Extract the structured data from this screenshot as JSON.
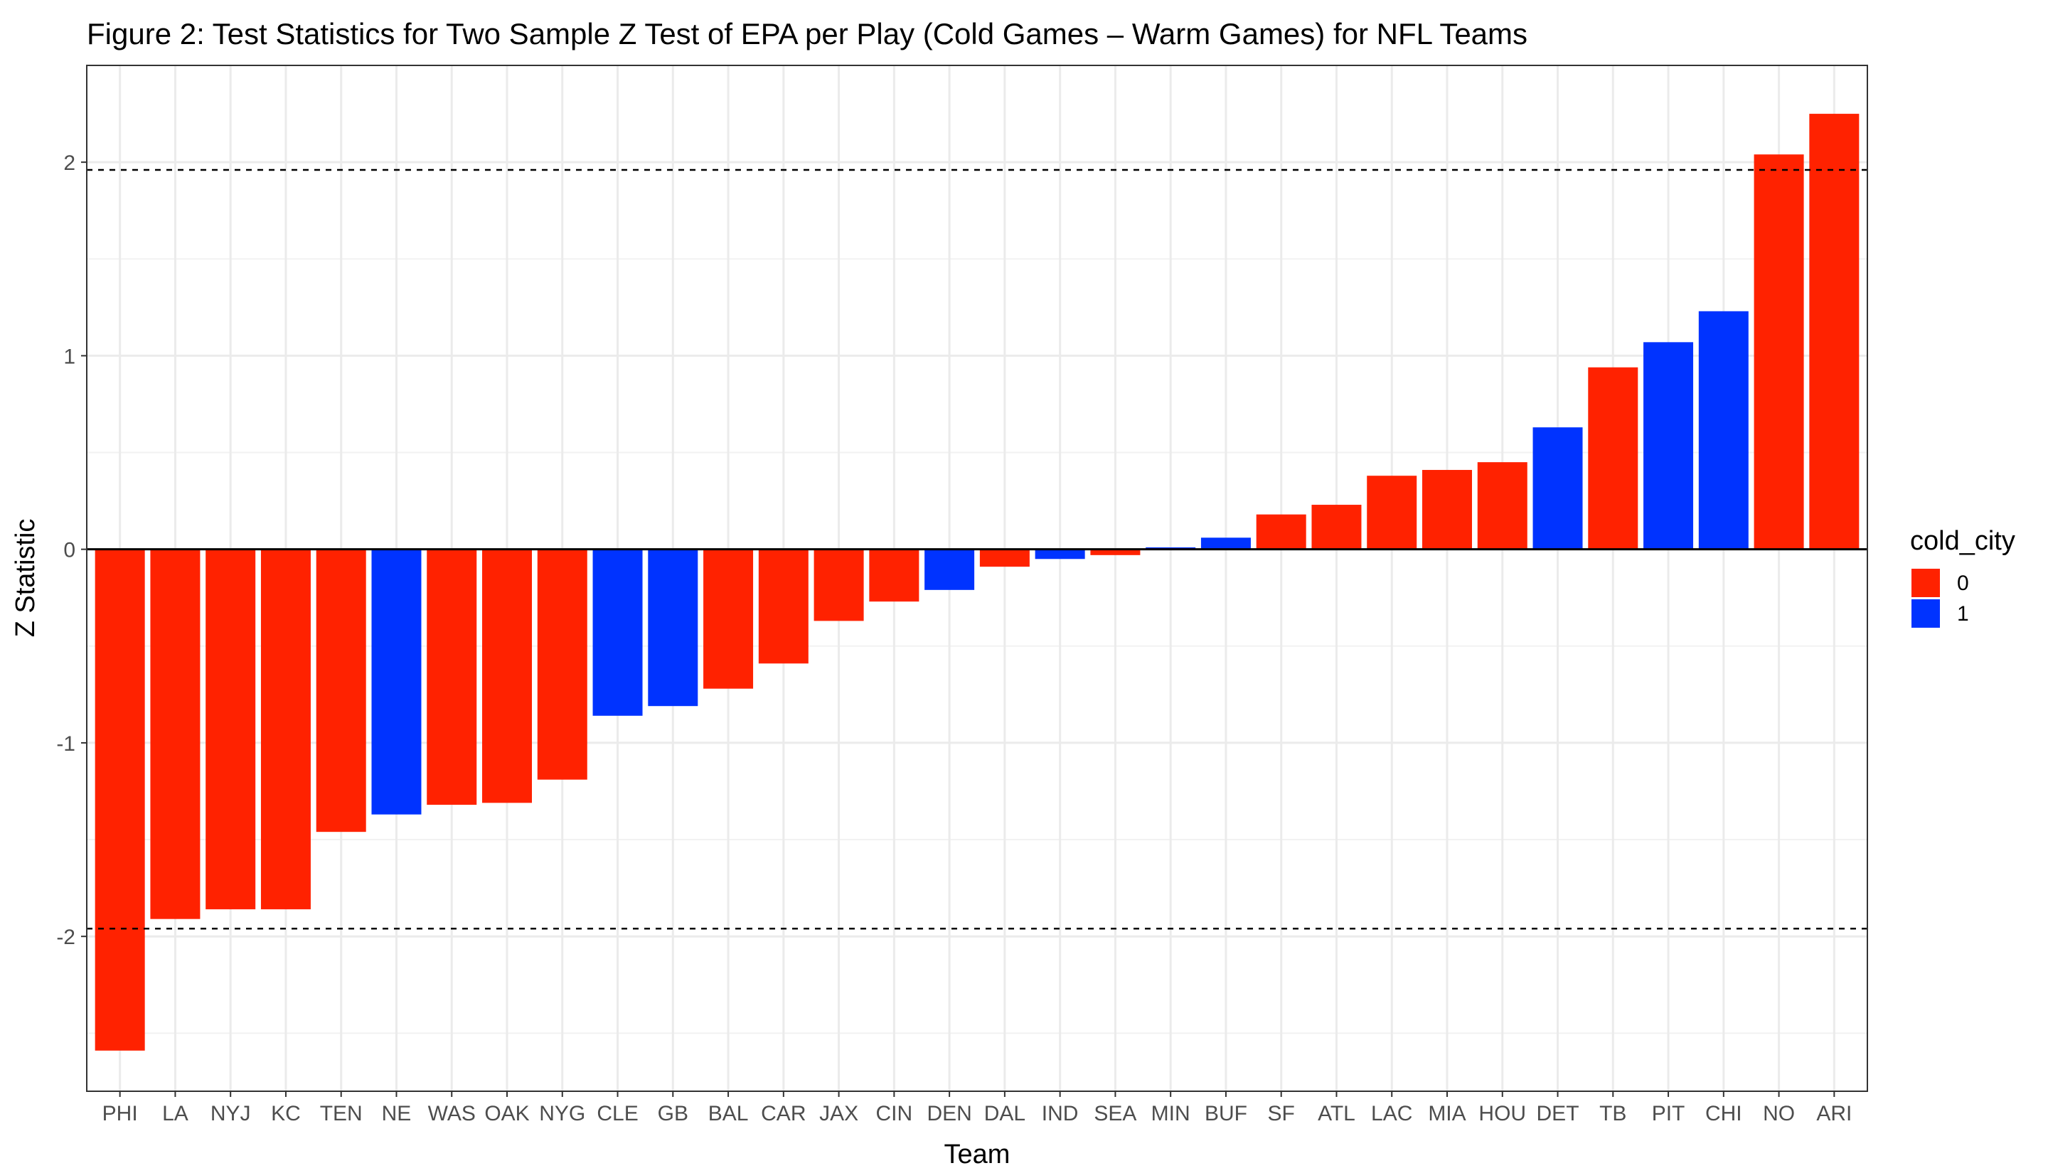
{
  "chart_data": {
    "type": "bar",
    "title": "Figure 2: Test Statistics for Two Sample Z Test of EPA per Play (Cold Games – Warm Games) for NFL Teams",
    "xlabel": "Team",
    "ylabel": "Z Statistic",
    "categories": [
      "PHI",
      "LA",
      "NYJ",
      "KC",
      "TEN",
      "NE",
      "WAS",
      "OAK",
      "NYG",
      "CLE",
      "GB",
      "BAL",
      "CAR",
      "JAX",
      "CIN",
      "DEN",
      "DAL",
      "IND",
      "SEA",
      "MIN",
      "BUF",
      "SF",
      "ATL",
      "LAC",
      "MIA",
      "HOU",
      "DET",
      "TB",
      "PIT",
      "CHI",
      "NO",
      "ARI"
    ],
    "values": [
      -2.59,
      -1.91,
      -1.86,
      -1.86,
      -1.46,
      -1.37,
      -1.32,
      -1.31,
      -1.19,
      -0.86,
      -0.81,
      -0.72,
      -0.59,
      -0.37,
      -0.27,
      -0.21,
      -0.09,
      -0.05,
      -0.03,
      0.01,
      0.06,
      0.18,
      0.23,
      0.38,
      0.41,
      0.45,
      0.63,
      0.94,
      1.07,
      1.23,
      2.04,
      2.25
    ],
    "cold_city": [
      "0",
      "0",
      "0",
      "0",
      "0",
      "1",
      "0",
      "0",
      "0",
      "1",
      "1",
      "0",
      "0",
      "0",
      "0",
      "1",
      "0",
      "1",
      "0",
      "1",
      "1",
      "0",
      "0",
      "0",
      "0",
      "0",
      "1",
      "0",
      "1",
      "1",
      "0",
      "0"
    ],
    "ylim": [
      -2.8,
      2.5
    ],
    "yticks": [
      -2,
      -1,
      0,
      1,
      2
    ],
    "yticklabels": [
      "-2",
      "-1",
      "0",
      "1",
      "2"
    ],
    "reference_lines": [
      -1.96,
      1.96
    ],
    "grid": true,
    "legend": {
      "title": "cold_city",
      "position": "right",
      "entries": [
        {
          "label": "0",
          "color": "#ff2200"
        },
        {
          "label": "1",
          "color": "#0033ff"
        }
      ]
    },
    "colors": {
      "0": "#ff2200",
      "1": "#0033ff"
    }
  }
}
